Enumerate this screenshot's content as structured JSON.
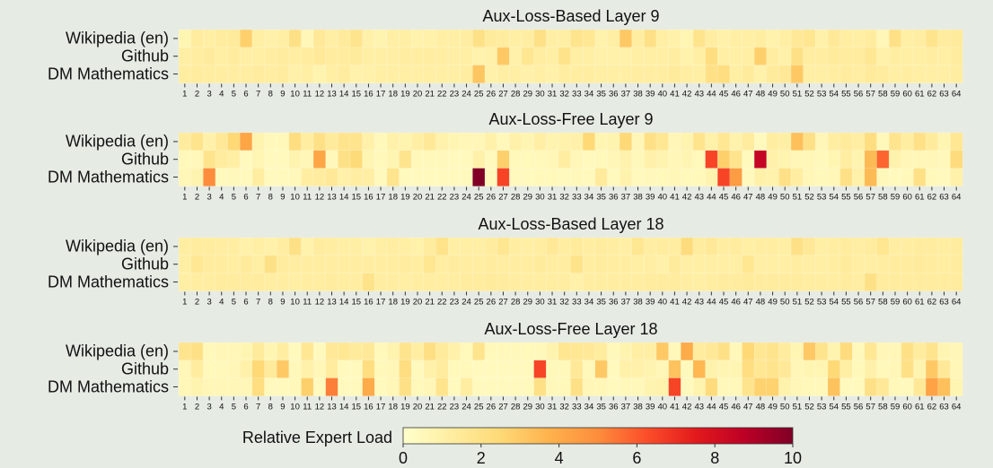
{
  "colorbar": {
    "label": "Relative Expert Load",
    "range": [
      0,
      10
    ],
    "ticks": [
      "0",
      "2",
      "4",
      "6",
      "8",
      "10"
    ],
    "colormap": [
      "#ffffcc",
      "#ffeda0",
      "#fed976",
      "#feb24c",
      "#fd8d3c",
      "#fc4e2a",
      "#e31a1c",
      "#bd0026",
      "#800026"
    ]
  },
  "chart_data": [
    {
      "type": "heatmap",
      "title": "Aux-Loss-Based Layer 9",
      "rows": [
        "Wikipedia (en)",
        "Github",
        "DM Mathematics"
      ],
      "categories": [
        1,
        2,
        3,
        4,
        5,
        6,
        7,
        8,
        9,
        10,
        11,
        12,
        13,
        14,
        15,
        16,
        17,
        18,
        19,
        20,
        21,
        22,
        23,
        24,
        25,
        26,
        27,
        28,
        29,
        30,
        31,
        32,
        33,
        34,
        35,
        36,
        37,
        38,
        39,
        40,
        41,
        42,
        43,
        44,
        45,
        46,
        47,
        48,
        49,
        50,
        51,
        52,
        53,
        54,
        55,
        56,
        57,
        58,
        59,
        60,
        61,
        62,
        63,
        64
      ],
      "values": [
        [
          0.7,
          1.3,
          1.1,
          1.3,
          1.4,
          2.8,
          1.1,
          1.0,
          1.1,
          2.0,
          0.6,
          1.5,
          1.1,
          1.4,
          1.8,
          1.0,
          0.8,
          1.1,
          1.1,
          0.9,
          1.0,
          1.1,
          1.1,
          1.2,
          2.0,
          1.4,
          1.3,
          1.1,
          1.2,
          2.0,
          1.1,
          1.1,
          1.8,
          1.6,
          0.9,
          1.1,
          3.0,
          1.2,
          2.0,
          1.1,
          1.0,
          0.7,
          1.8,
          1.2,
          1.0,
          1.1,
          1.1,
          1.2,
          0.9,
          1.1,
          1.5,
          1.7,
          1.0,
          1.5,
          1.2,
          1.1,
          1.3,
          0.6,
          2.0,
          1.1,
          1.2,
          1.8,
          1.3,
          1.4
        ],
        [
          1.1,
          1.2,
          1.4,
          1.1,
          1.3,
          1.1,
          1.1,
          1.2,
          1.3,
          1.2,
          1.3,
          1.5,
          1.3,
          1.3,
          1.4,
          1.1,
          1.1,
          1.1,
          1.2,
          1.2,
          1.2,
          1.2,
          1.1,
          1.1,
          0.9,
          1.0,
          3.0,
          1.0,
          1.7,
          1.2,
          1.1,
          1.9,
          1.1,
          1.1,
          1.0,
          1.0,
          1.0,
          1.1,
          1.1,
          1.1,
          1.2,
          0.9,
          1.1,
          2.2,
          1.1,
          1.1,
          1.1,
          2.8,
          1.2,
          1.0,
          2.0,
          1.2,
          1.2,
          1.4,
          1.3,
          1.3,
          1.6,
          1.0,
          1.2,
          1.1,
          1.1,
          1.2,
          1.1,
          1.3
        ],
        [
          1.2,
          1.3,
          1.2,
          1.2,
          1.2,
          1.2,
          1.3,
          1.2,
          1.3,
          1.0,
          1.1,
          0.8,
          1.1,
          1.3,
          0.9,
          1.0,
          1.1,
          1.1,
          1.1,
          1.1,
          1.1,
          1.1,
          1.1,
          1.2,
          3.1,
          1.0,
          1.1,
          1.1,
          1.0,
          1.1,
          1.0,
          1.2,
          1.2,
          1.2,
          1.1,
          1.1,
          1.1,
          1.2,
          1.2,
          1.2,
          1.4,
          1.2,
          1.1,
          2.0,
          2.2,
          1.1,
          1.4,
          1.0,
          1.4,
          1.5,
          3.0,
          1.1,
          1.1,
          1.2,
          1.3,
          1.2,
          1.4,
          1.3,
          1.1,
          1.2,
          1.1,
          1.1,
          1.1,
          1.2
        ]
      ]
    },
    {
      "type": "heatmap",
      "title": "Aux-Loss-Free Layer 9",
      "rows": [
        "Wikipedia (en)",
        "Github",
        "DM Mathematics"
      ],
      "categories": [
        1,
        2,
        3,
        4,
        5,
        6,
        7,
        8,
        9,
        10,
        11,
        12,
        13,
        14,
        15,
        16,
        17,
        18,
        19,
        20,
        21,
        22,
        23,
        24,
        25,
        26,
        27,
        28,
        29,
        30,
        31,
        32,
        33,
        34,
        35,
        36,
        37,
        38,
        39,
        40,
        41,
        42,
        43,
        44,
        45,
        46,
        47,
        48,
        49,
        50,
        51,
        52,
        53,
        54,
        55,
        56,
        57,
        58,
        59,
        60,
        61,
        62,
        63,
        64
      ],
      "values": [
        [
          1.3,
          1.8,
          1.0,
          1.5,
          2.5,
          4.2,
          0.8,
          0.5,
          0.5,
          2.2,
          1.2,
          2.0,
          1.4,
          1.8,
          1.8,
          1.0,
          0.5,
          1.0,
          0.8,
          1.1,
          1.5,
          0.9,
          0.7,
          0.6,
          0.6,
          1.0,
          0.5,
          1.0,
          0.7,
          1.1,
          0.8,
          0.9,
          1.0,
          2.5,
          0.7,
          0.8,
          2.5,
          0.6,
          2.0,
          1.6,
          0.6,
          0.8,
          1.8,
          1.0,
          1.6,
          0.9,
          1.3,
          0.4,
          1.2,
          1.1,
          3.3,
          2.0,
          0.6,
          1.2,
          1.4,
          1.2,
          2.2,
          0.5,
          1.8,
          1.2,
          2.0,
          1.4,
          0.7,
          1.6
        ],
        [
          0.5,
          0.5,
          1.8,
          1.3,
          1.1,
          0.4,
          0.7,
          0.4,
          0.4,
          0.8,
          0.6,
          4.2,
          0.5,
          2.0,
          2.4,
          0.7,
          0.5,
          0.7,
          1.8,
          0.5,
          0.5,
          0.5,
          0.4,
          0.4,
          1.0,
          0.4,
          2.8,
          0.5,
          0.5,
          0.5,
          0.6,
          1.2,
          0.6,
          0.4,
          0.5,
          0.6,
          0.9,
          0.5,
          1.0,
          0.8,
          0.6,
          0.7,
          0.5,
          6.5,
          2.8,
          1.8,
          0.4,
          8.5,
          1.0,
          0.8,
          0.6,
          0.6,
          0.5,
          0.7,
          1.2,
          0.8,
          3.5,
          5.8,
          0.9,
          0.6,
          0.6,
          0.6,
          0.5,
          2.3
        ],
        [
          0.6,
          0.8,
          5.0,
          0.4,
          0.5,
          0.4,
          1.2,
          0.4,
          0.4,
          0.5,
          1.2,
          1.3,
          1.5,
          1.0,
          1.2,
          1.1,
          0.4,
          1.8,
          0.4,
          0.4,
          0.4,
          0.4,
          0.4,
          0.4,
          10.0,
          0.4,
          6.5,
          0.4,
          0.4,
          0.5,
          0.5,
          0.4,
          0.5,
          0.4,
          1.4,
          0.4,
          0.9,
          0.4,
          0.5,
          0.5,
          0.6,
          0.5,
          0.5,
          0.8,
          6.5,
          4.5,
          0.4,
          1.0,
          0.9,
          2.0,
          1.2,
          0.6,
          0.5,
          0.6,
          2.0,
          1.0,
          3.5,
          0.5,
          0.4,
          0.5,
          2.0,
          0.5,
          0.4,
          1.0
        ]
      ]
    },
    {
      "type": "heatmap",
      "title": "Aux-Loss-Based Layer 18",
      "rows": [
        "Wikipedia (en)",
        "Github",
        "DM Mathematics"
      ],
      "categories": [
        1,
        2,
        3,
        4,
        5,
        6,
        7,
        8,
        9,
        10,
        11,
        12,
        13,
        14,
        15,
        16,
        17,
        18,
        19,
        20,
        21,
        22,
        23,
        24,
        25,
        26,
        27,
        28,
        29,
        30,
        31,
        32,
        33,
        34,
        35,
        36,
        37,
        38,
        39,
        40,
        41,
        42,
        43,
        44,
        45,
        46,
        47,
        48,
        49,
        50,
        51,
        52,
        53,
        54,
        55,
        56,
        57,
        58,
        59,
        60,
        61,
        62,
        63,
        64
      ],
      "values": [
        [
          1.2,
          1.3,
          1.3,
          1.2,
          1.2,
          1.0,
          1.1,
          1.0,
          1.2,
          2.0,
          0.9,
          1.3,
          1.2,
          1.1,
          1.1,
          0.9,
          1.1,
          1.2,
          1.1,
          1.0,
          1.3,
          1.9,
          1.1,
          1.1,
          1.1,
          1.3,
          1.7,
          1.2,
          1.1,
          1.2,
          1.5,
          1.2,
          1.4,
          1.2,
          1.3,
          1.2,
          1.1,
          1.7,
          1.2,
          1.3,
          1.2,
          2.3,
          1.3,
          1.5,
          1.2,
          1.3,
          1.1,
          1.2,
          1.2,
          1.1,
          2.0,
          1.5,
          1.1,
          1.2,
          1.3,
          1.2,
          1.3,
          1.7,
          1.2,
          1.2,
          1.3,
          1.3,
          1.2,
          1.3
        ],
        [
          1.1,
          1.6,
          1.3,
          1.3,
          1.2,
          1.4,
          1.1,
          2.0,
          1.3,
          1.2,
          1.2,
          1.2,
          1.2,
          1.2,
          1.2,
          1.2,
          1.2,
          1.2,
          1.3,
          1.2,
          1.7,
          1.2,
          1.3,
          1.2,
          1.2,
          1.3,
          1.2,
          1.2,
          1.2,
          1.4,
          1.2,
          1.2,
          1.9,
          1.2,
          1.3,
          1.2,
          1.2,
          1.1,
          1.2,
          1.0,
          1.4,
          1.1,
          1.1,
          1.1,
          1.1,
          1.1,
          1.7,
          1.1,
          1.1,
          1.1,
          1.2,
          1.1,
          1.1,
          1.2,
          1.4,
          1.2,
          1.1,
          1.2,
          1.3,
          1.3,
          1.4,
          1.3,
          1.2,
          1.3
        ],
        [
          1.1,
          1.2,
          1.2,
          1.3,
          1.3,
          1.3,
          1.3,
          1.2,
          1.2,
          1.1,
          1.2,
          1.2,
          1.3,
          1.2,
          1.2,
          1.9,
          1.2,
          1.2,
          1.1,
          1.2,
          1.2,
          1.2,
          1.2,
          1.3,
          1.3,
          1.4,
          1.3,
          1.2,
          1.2,
          1.2,
          1.2,
          1.2,
          1.0,
          1.2,
          1.2,
          1.2,
          1.2,
          1.2,
          1.3,
          1.3,
          1.3,
          1.2,
          1.1,
          1.2,
          1.3,
          1.3,
          1.4,
          1.3,
          1.3,
          1.3,
          1.3,
          1.2,
          1.2,
          1.2,
          1.3,
          1.2,
          2.0,
          1.3,
          1.3,
          1.3,
          1.3,
          1.3,
          1.3,
          1.3
        ]
      ]
    },
    {
      "type": "heatmap",
      "title": "Aux-Loss-Free Layer 18",
      "rows": [
        "Wikipedia (en)",
        "Github",
        "DM Mathematics"
      ],
      "categories": [
        1,
        2,
        3,
        4,
        5,
        6,
        7,
        8,
        9,
        10,
        11,
        12,
        13,
        14,
        15,
        16,
        17,
        18,
        19,
        20,
        21,
        22,
        23,
        24,
        25,
        26,
        27,
        28,
        29,
        30,
        31,
        32,
        33,
        34,
        35,
        36,
        37,
        38,
        39,
        40,
        41,
        42,
        43,
        44,
        45,
        46,
        47,
        48,
        49,
        50,
        51,
        52,
        53,
        54,
        55,
        56,
        57,
        58,
        59,
        60,
        61,
        62,
        63,
        64
      ],
      "values": [
        [
          1.8,
          2.0,
          0.5,
          0.6,
          0.6,
          0.7,
          1.4,
          0.7,
          1.2,
          0.4,
          1.6,
          0.4,
          1.5,
          1.6,
          1.4,
          1.5,
          0.5,
          0.8,
          1.8,
          1.2,
          2.1,
          1.4,
          1.0,
          0.5,
          1.8,
          0.5,
          0.5,
          0.5,
          0.5,
          0.5,
          0.8,
          1.7,
          1.6,
          1.5,
          1.3,
          0.5,
          0.8,
          1.1,
          1.1,
          3.0,
          0.5,
          4.0,
          1.3,
          1.5,
          2.0,
          0.5,
          2.5,
          1.6,
          1.8,
          1.3,
          0.7,
          3.0,
          1.8,
          0.8,
          2.3,
          0.5,
          1.6,
          0.6,
          0.6,
          2.0,
          1.3,
          1.8,
          0.7,
          0.6
        ],
        [
          0.6,
          1.3,
          0.5,
          0.5,
          0.6,
          1.0,
          2.5,
          1.4,
          3.0,
          0.5,
          1.0,
          0.6,
          1.3,
          0.4,
          0.4,
          2.2,
          0.5,
          0.6,
          2.2,
          0.4,
          1.0,
          1.3,
          0.5,
          0.5,
          0.4,
          0.4,
          0.4,
          0.4,
          0.4,
          6.5,
          0.5,
          0.5,
          1.5,
          0.5,
          3.0,
          0.4,
          1.0,
          1.0,
          0.8,
          0.6,
          3.2,
          0.4,
          3.6,
          0.9,
          0.7,
          0.7,
          2.2,
          1.6,
          1.8,
          1.5,
          0.6,
          0.7,
          0.7,
          2.5,
          1.1,
          0.5,
          1.0,
          0.5,
          0.6,
          2.0,
          0.8,
          3.0,
          1.5,
          0.6
        ],
        [
          0.6,
          0.8,
          0.6,
          0.6,
          0.6,
          0.6,
          2.2,
          0.4,
          0.4,
          0.5,
          2.8,
          0.4,
          5.3,
          0.4,
          0.4,
          4.0,
          0.4,
          0.6,
          2.0,
          0.5,
          0.6,
          1.8,
          0.4,
          1.2,
          0.4,
          0.4,
          0.4,
          0.4,
          0.4,
          2.0,
          0.5,
          0.5,
          2.0,
          0.6,
          0.6,
          0.4,
          0.5,
          0.5,
          0.8,
          0.9,
          6.5,
          0.4,
          0.8,
          2.3,
          0.5,
          0.5,
          1.8,
          2.7,
          2.7,
          0.9,
          0.6,
          0.5,
          0.5,
          3.2,
          0.4,
          0.4,
          2.0,
          1.5,
          0.5,
          0.4,
          1.5,
          4.3,
          3.3,
          0.7
        ]
      ]
    }
  ]
}
